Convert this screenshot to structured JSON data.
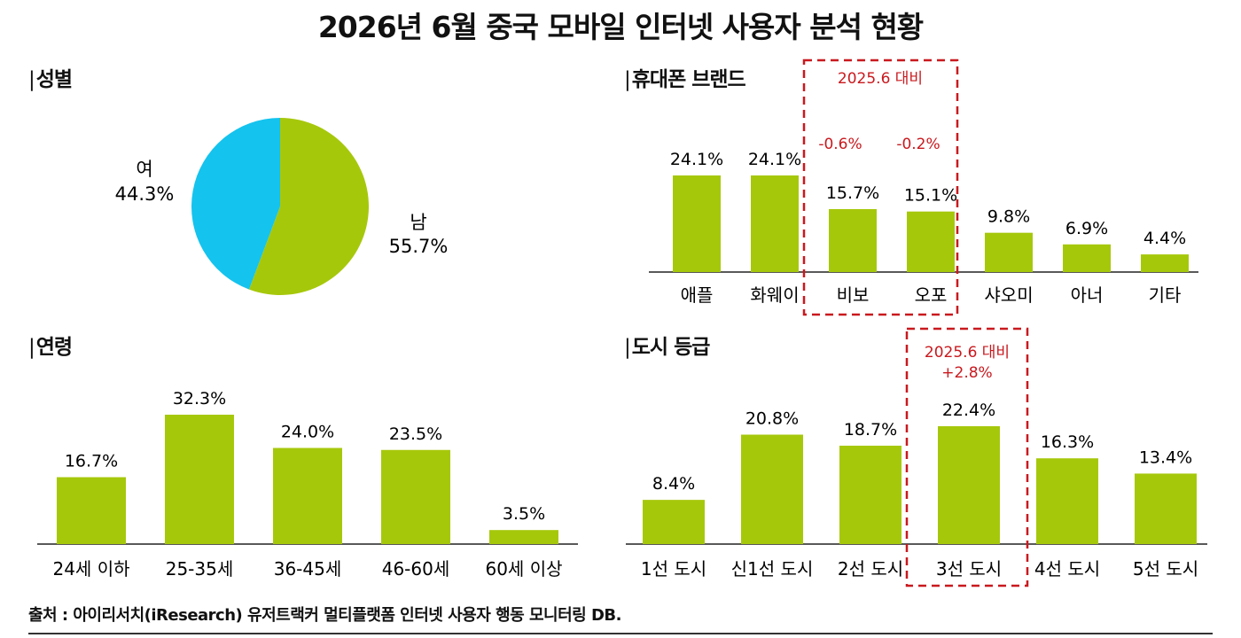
{
  "title": "2026년 6월 중국 모바일 인터넷 사용자 분석 현황",
  "sections": {
    "gender": "성별",
    "brand": "휴대폰 브랜드",
    "age": "연령",
    "city": "도시 등급"
  },
  "colors": {
    "bar": "#A6C80B",
    "pie_female": "#14C3EE",
    "pie_male": "#A6C80B",
    "highlight": "#C9191E"
  },
  "brand_highlight": {
    "label": "2025.6 대비",
    "changes": [
      "-0.6%",
      "-0.2%"
    ]
  },
  "city_highlight": {
    "label": "2025.6 대비",
    "change": "+2.8%"
  },
  "source": "출처 : 아이리서치(iResearch) 유저트랙커 멀티플랫폼 인터넷 사용자 행동 모니터링 DB.",
  "chart_data": [
    {
      "type": "pie",
      "title": "성별",
      "categories": [
        "남",
        "여"
      ],
      "values": [
        55.7,
        44.3
      ],
      "value_labels": [
        "55.7%",
        "44.3%"
      ]
    },
    {
      "type": "bar",
      "title": "휴대폰 브랜드",
      "categories": [
        "애플",
        "화웨이",
        "비보",
        "오포",
        "샤오미",
        "아너",
        "기타"
      ],
      "values": [
        24.1,
        24.1,
        15.7,
        15.1,
        9.8,
        6.9,
        4.4
      ],
      "value_labels": [
        "24.1%",
        "24.1%",
        "15.7%",
        "15.1%",
        "9.8%",
        "6.9%",
        "4.4%"
      ]
    },
    {
      "type": "bar",
      "title": "연령",
      "categories": [
        "24세 이하",
        "25-35세",
        "36-45세",
        "46-60세",
        "60세 이상"
      ],
      "values": [
        16.7,
        32.3,
        24.0,
        23.5,
        3.5
      ],
      "value_labels": [
        "16.7%",
        "32.3%",
        "24.0%",
        "23.5%",
        "3.5%"
      ]
    },
    {
      "type": "bar",
      "title": "도시 등급",
      "categories": [
        "1선 도시",
        "신1선 도시",
        "2선 도시",
        "3선 도시",
        "4선 도시",
        "5선 도시"
      ],
      "values": [
        8.4,
        20.8,
        18.7,
        22.4,
        16.3,
        13.4
      ],
      "value_labels": [
        "8.4%",
        "20.8%",
        "18.7%",
        "22.4%",
        "16.3%",
        "13.4%"
      ]
    }
  ]
}
